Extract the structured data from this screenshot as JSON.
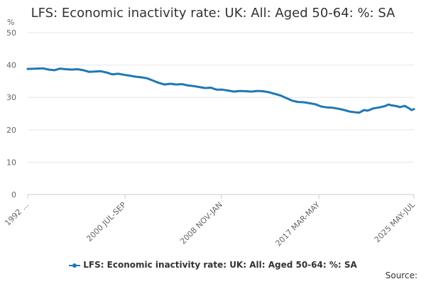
{
  "title": "LFS: Economic inactivity rate: UK: All: Aged 50-64: %: SA",
  "source_label": "Source:",
  "colors": {
    "series": "#1f78b4",
    "grid": "#e6e6e6",
    "axis": "#cccccc"
  },
  "chart_data": {
    "type": "line",
    "title": "LFS: Economic inactivity rate: UK: All: Aged 50-64: %: SA",
    "ylabel": "%",
    "xlabel": "",
    "ylim": [
      0,
      50
    ],
    "yticks": [
      0,
      10,
      20,
      30,
      40,
      50
    ],
    "grid": true,
    "legend_position": "bottom",
    "x_range": [
      1992.2,
      2025.5
    ],
    "xtick_labels": [
      {
        "label": "1992 ...",
        "x": 1992.2
      },
      {
        "label": "2000 JUL-SEP",
        "x": 2000.6
      },
      {
        "label": "2008 NOV-JAN",
        "x": 2008.9
      },
      {
        "label": "2017 MAR-MAY",
        "x": 2017.3
      },
      {
        "label": "2025 MAY-JUL",
        "x": 2025.5
      }
    ],
    "series": [
      {
        "name": "LFS: Economic inactivity rate: UK: All: Aged 50-64: %: SA",
        "points": [
          [
            1992.2,
            38.8
          ],
          [
            1993.0,
            38.9
          ],
          [
            1993.5,
            39.0
          ],
          [
            1994.0,
            38.6
          ],
          [
            1994.5,
            38.4
          ],
          [
            1995.0,
            38.9
          ],
          [
            1995.5,
            38.7
          ],
          [
            1996.0,
            38.6
          ],
          [
            1996.5,
            38.7
          ],
          [
            1997.0,
            38.4
          ],
          [
            1997.5,
            37.9
          ],
          [
            1998.0,
            38.0
          ],
          [
            1998.5,
            38.1
          ],
          [
            1999.0,
            37.7
          ],
          [
            1999.5,
            37.1
          ],
          [
            2000.0,
            37.3
          ],
          [
            2000.5,
            37.0
          ],
          [
            2001.0,
            36.7
          ],
          [
            2001.5,
            36.4
          ],
          [
            2002.0,
            36.2
          ],
          [
            2002.5,
            35.9
          ],
          [
            2003.0,
            35.2
          ],
          [
            2003.5,
            34.5
          ],
          [
            2004.0,
            34.0
          ],
          [
            2004.5,
            34.2
          ],
          [
            2005.0,
            34.0
          ],
          [
            2005.5,
            34.1
          ],
          [
            2006.0,
            33.7
          ],
          [
            2006.5,
            33.5
          ],
          [
            2007.0,
            33.2
          ],
          [
            2007.5,
            32.9
          ],
          [
            2008.0,
            33.0
          ],
          [
            2008.5,
            32.4
          ],
          [
            2009.0,
            32.4
          ],
          [
            2009.5,
            32.1
          ],
          [
            2010.0,
            31.8
          ],
          [
            2010.5,
            32.0
          ],
          [
            2011.0,
            31.9
          ],
          [
            2011.5,
            31.8
          ],
          [
            2012.0,
            32.0
          ],
          [
            2012.5,
            31.9
          ],
          [
            2013.0,
            31.6
          ],
          [
            2013.5,
            31.1
          ],
          [
            2014.0,
            30.6
          ],
          [
            2014.5,
            29.8
          ],
          [
            2015.0,
            29.0
          ],
          [
            2015.5,
            28.6
          ],
          [
            2016.0,
            28.5
          ],
          [
            2016.5,
            28.2
          ],
          [
            2017.0,
            27.9
          ],
          [
            2017.5,
            27.2
          ],
          [
            2018.0,
            26.9
          ],
          [
            2018.5,
            26.8
          ],
          [
            2019.0,
            26.5
          ],
          [
            2019.5,
            26.1
          ],
          [
            2020.0,
            25.6
          ],
          [
            2020.5,
            25.4
          ],
          [
            2020.8,
            25.3
          ],
          [
            2021.2,
            26.1
          ],
          [
            2021.5,
            25.9
          ],
          [
            2022.0,
            26.6
          ],
          [
            2022.5,
            26.9
          ],
          [
            2023.0,
            27.3
          ],
          [
            2023.3,
            27.8
          ],
          [
            2023.5,
            27.6
          ],
          [
            2024.0,
            27.3
          ],
          [
            2024.3,
            27.0
          ],
          [
            2024.7,
            27.4
          ],
          [
            2025.0,
            26.8
          ],
          [
            2025.3,
            26.1
          ],
          [
            2025.5,
            26.4
          ]
        ]
      }
    ]
  }
}
